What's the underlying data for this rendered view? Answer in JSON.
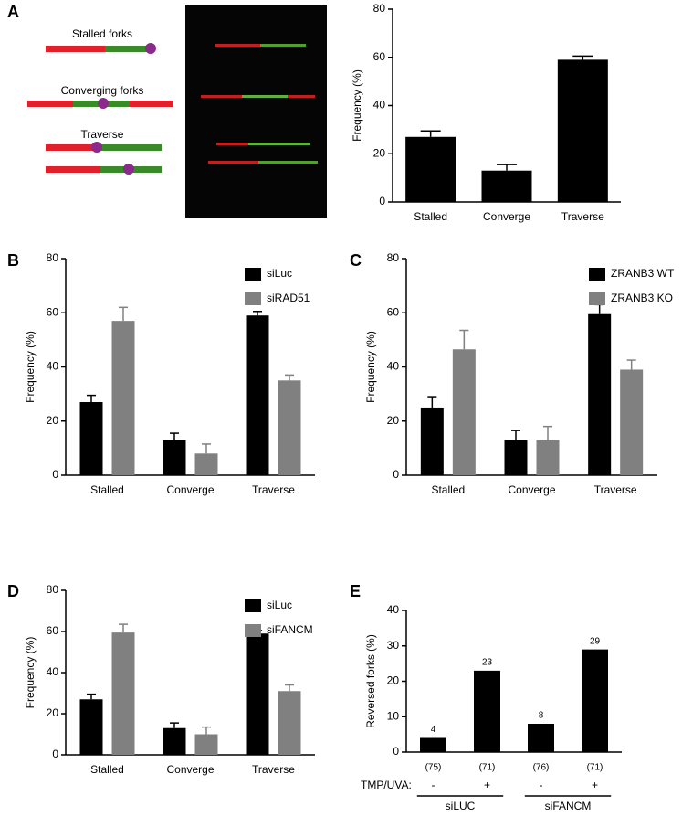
{
  "panel_labels": [
    "A",
    "B",
    "C",
    "D",
    "E"
  ],
  "diagram": {
    "labels": [
      "Stalled forks",
      "Converging forks",
      "Traverse"
    ]
  },
  "chart_data": [
    {
      "type": "bar",
      "y_label": "Frequency (%)",
      "categories": [
        "Stalled",
        "Converge",
        "Traverse"
      ],
      "values": [
        27,
        13,
        59
      ],
      "errors": [
        2.5,
        2.5,
        1.5
      ],
      "color": "#000000",
      "ylim": [
        0,
        80
      ],
      "yticks": [
        0,
        20,
        40,
        60,
        80
      ],
      "grid": false
    },
    {
      "type": "bar",
      "y_label": "Frequency (%)",
      "categories": [
        "Stalled",
        "Converge",
        "Traverse"
      ],
      "series": [
        {
          "name": "siLuc",
          "color": "#000000",
          "values": [
            27,
            13,
            59
          ],
          "errors": [
            2.5,
            2.5,
            1.5
          ]
        },
        {
          "name": "siRAD51",
          "color": "#808080",
          "values": [
            57,
            8,
            35
          ],
          "errors": [
            5,
            3.5,
            2
          ]
        }
      ],
      "ylim": [
        0,
        80
      ],
      "yticks": [
        0,
        20,
        40,
        60,
        80
      ],
      "grid": false,
      "legend": "upper right"
    },
    {
      "type": "bar",
      "y_label": "Frequency (%)",
      "categories": [
        "Stalled",
        "Converge",
        "Traverse"
      ],
      "series": [
        {
          "name": "ZRANB3 WT",
          "color": "#000000",
          "values": [
            25,
            13,
            59.5
          ],
          "errors": [
            4,
            3.5,
            3.5
          ]
        },
        {
          "name": "ZRANB3 KO",
          "color": "#808080",
          "values": [
            46.5,
            13,
            39
          ],
          "errors": [
            7,
            5,
            3.5
          ]
        }
      ],
      "ylim": [
        0,
        80
      ],
      "yticks": [
        0,
        20,
        40,
        60,
        80
      ],
      "grid": false,
      "legend": "upper right"
    },
    {
      "type": "bar",
      "y_label": "Frequency (%)",
      "categories": [
        "Stalled",
        "Converge",
        "Traverse"
      ],
      "series": [
        {
          "name": "siLuc",
          "color": "#000000",
          "values": [
            27,
            13,
            59
          ],
          "errors": [
            2.5,
            2.5,
            1.5
          ]
        },
        {
          "name": "siFANCM",
          "color": "#808080",
          "values": [
            59.5,
            10,
            31
          ],
          "errors": [
            4,
            3.5,
            3
          ]
        }
      ],
      "ylim": [
        0,
        80
      ],
      "yticks": [
        0,
        20,
        40,
        60,
        80
      ],
      "grid": false,
      "legend": "upper right"
    },
    {
      "type": "bar",
      "y_label": "Reversed forks (%)",
      "categories": [
        "(75)",
        "(71)",
        "(76)",
        "(71)"
      ],
      "values": [
        4,
        23,
        8,
        29
      ],
      "color": "#000000",
      "data_labels": true,
      "ylim": [
        0,
        40
      ],
      "yticks": [
        0,
        10,
        20,
        30,
        40
      ],
      "grid": false,
      "annotations": {
        "row_label": "TMP/UVA:",
        "signs": [
          "-",
          "+",
          "-",
          "+"
        ],
        "groups": [
          "siLUC",
          "siFANCM"
        ]
      }
    }
  ]
}
